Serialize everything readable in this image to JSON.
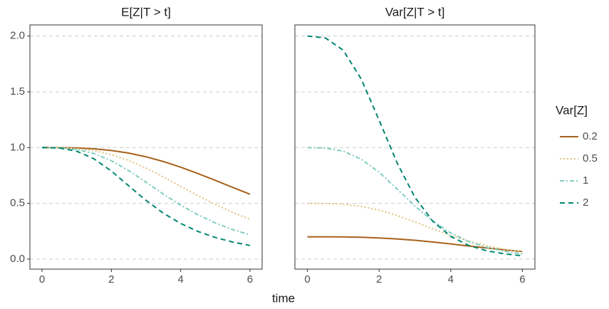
{
  "chart_data": {
    "type": "line",
    "xlabel": "time",
    "legend_title": "Var[Z]",
    "legend_position": "right",
    "grid": true,
    "xlim": [
      -0.35,
      6.35
    ],
    "xticks": [
      0,
      2,
      4,
      6
    ],
    "ylim": [
      -0.09,
      2.1
    ],
    "yticks": [
      {
        "value": 0,
        "label": "0.0"
      },
      {
        "value": 0.5,
        "label": "0.5"
      },
      {
        "value": 1,
        "label": "1.0"
      },
      {
        "value": 1.5,
        "label": "1.5"
      },
      {
        "value": 2,
        "label": "2.0"
      }
    ],
    "x": [
      0,
      0.5,
      1,
      1.5,
      2,
      2.5,
      3,
      3.5,
      4,
      4.5,
      5,
      5.5,
      6
    ],
    "series": [
      {
        "name": "0.2",
        "color": "#a6611a",
        "dash": "solid"
      },
      {
        "name": "0.5",
        "color": "#dfc27d",
        "dash": "dotted"
      },
      {
        "name": "1",
        "color": "#80cdc1",
        "dash": "dashdot"
      },
      {
        "name": "2",
        "color": "#018571",
        "dash": "dashed"
      }
    ],
    "facets": [
      {
        "title": "E[Z|T > t]",
        "values": [
          [
            1,
            0.9996,
            0.9967,
            0.9889,
            0.974,
            0.9505,
            0.9174,
            0.875,
            0.8242,
            0.767,
            0.7059,
            0.6433,
            0.5814
          ],
          [
            1,
            0.999,
            0.9917,
            0.9724,
            0.9375,
            0.8848,
            0.8163,
            0.7368,
            0.6522,
            0.5684,
            0.4898,
            0.419,
            0.3571
          ],
          [
            1,
            0.9979,
            0.9836,
            0.9467,
            0.8824,
            0.7934,
            0.6897,
            0.5832,
            0.4839,
            0.397,
            0.3243,
            0.265,
            0.2174
          ],
          [
            1,
            0.9959,
            0.9677,
            0.8989,
            0.7895,
            0.6575,
            0.5263,
            0.4117,
            0.3191,
            0.2477,
            0.1935,
            0.1528,
            0.122
          ]
        ]
      },
      {
        "title": "Var[Z|T > t]",
        "values": [
          [
            0.2,
            0.1998,
            0.1987,
            0.1956,
            0.1897,
            0.1807,
            0.1683,
            0.1531,
            0.1359,
            0.1177,
            0.0997,
            0.0828,
            0.0676
          ],
          [
            0.5,
            0.499,
            0.4917,
            0.4728,
            0.4395,
            0.3914,
            0.3332,
            0.2714,
            0.2127,
            0.1615,
            0.12,
            0.0878,
            0.0638
          ],
          [
            1,
            0.9958,
            0.9675,
            0.8963,
            0.7786,
            0.6295,
            0.4756,
            0.3402,
            0.2341,
            0.1576,
            0.1052,
            0.0702,
            0.0473
          ],
          [
            2,
            1.9834,
            1.873,
            1.616,
            1.2466,
            0.8646,
            0.554,
            0.339,
            0.2037,
            0.1227,
            0.0749,
            0.0467,
            0.0297
          ]
        ]
      }
    ]
  }
}
